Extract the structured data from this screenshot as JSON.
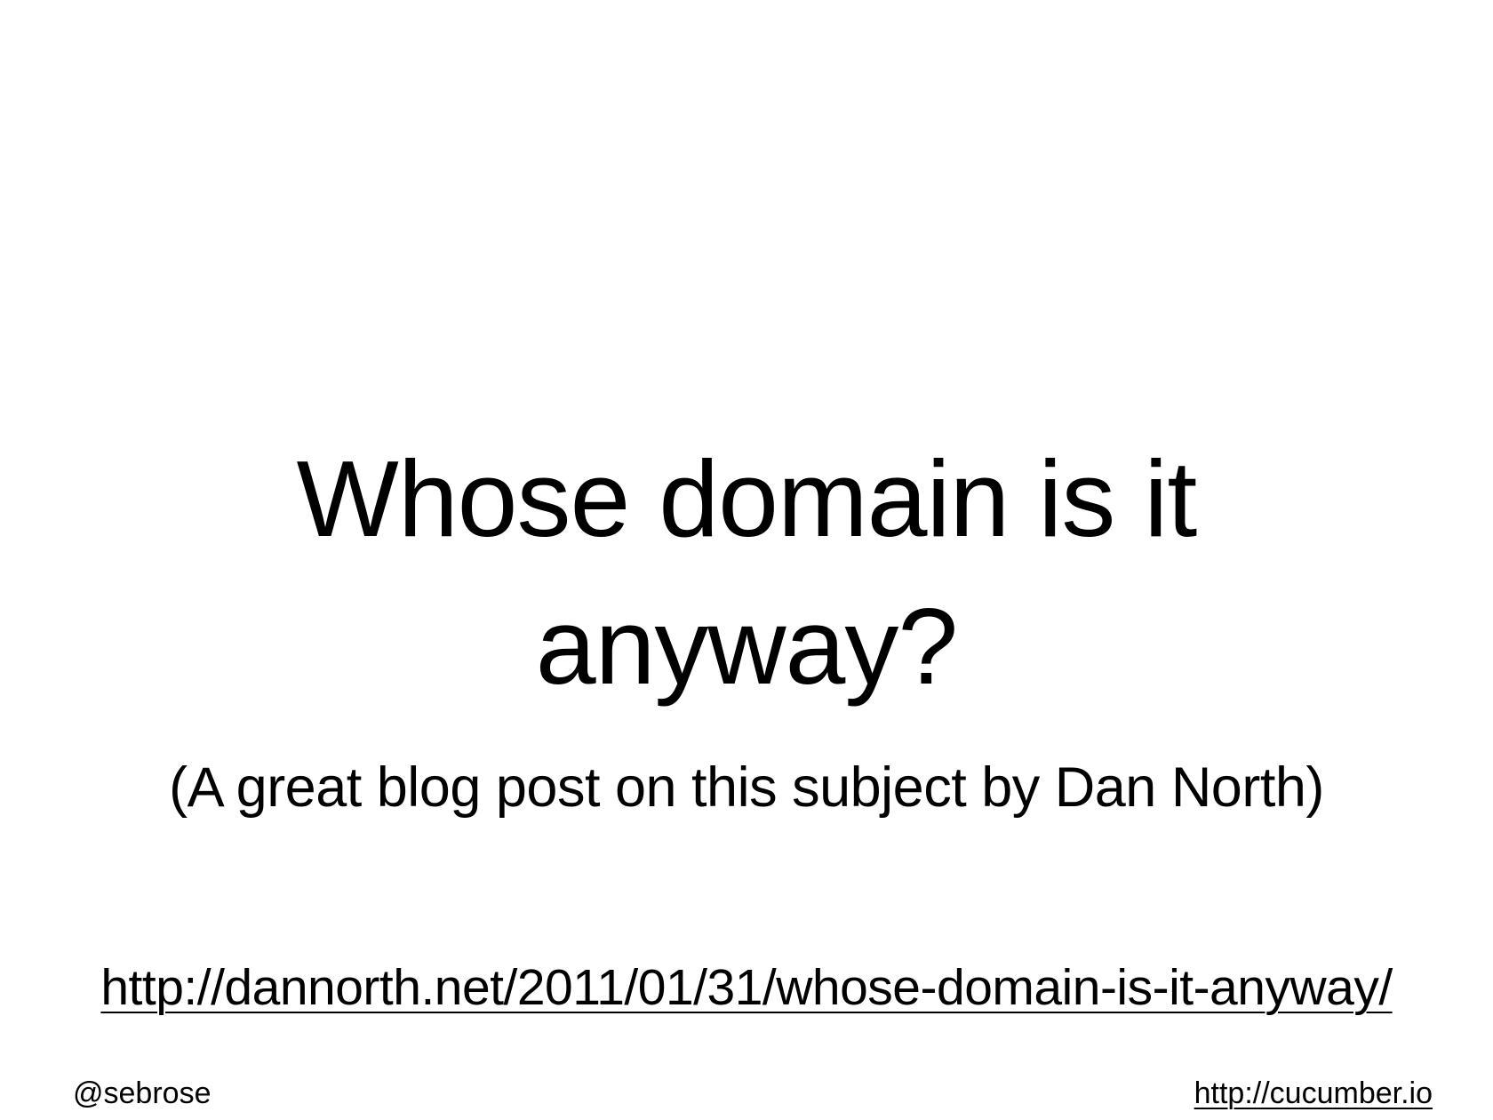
{
  "slide": {
    "title_line1": "Whose domain is it",
    "title_line2": "anyway?",
    "subtitle": "(A great blog post on this subject by Dan North)",
    "link": "http://dannorth.net/2011/01/31/whose-domain-is-it-anyway/"
  },
  "footer": {
    "handle": "@sebrose",
    "site": "http://cucumber.io"
  }
}
